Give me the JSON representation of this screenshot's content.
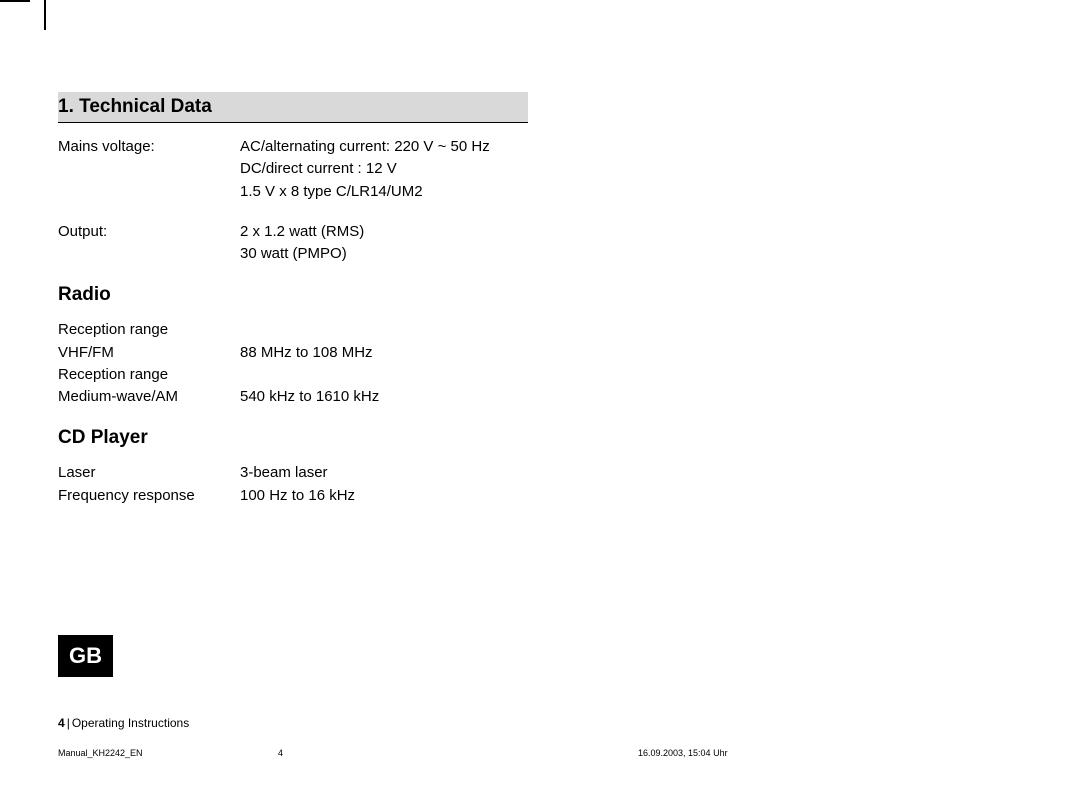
{
  "heading": "1. Technical Data",
  "specs_main": [
    {
      "label": "Mains voltage:",
      "lines": [
        "AC/alternating current: 220 V ~ 50 Hz",
        "DC/direct current : 12 V",
        "1.5 V x 8 type C/LR14/UM2"
      ]
    },
    {
      "label": "Output:",
      "lines": [
        "2 x 1.2 watt (RMS)",
        "30 watt (PMPO)"
      ]
    }
  ],
  "sub_radio": "Radio",
  "specs_radio": [
    {
      "label": "Reception range",
      "lines": [
        ""
      ]
    },
    {
      "label": "VHF/FM",
      "lines": [
        "88 MHz to 108 MHz"
      ]
    },
    {
      "label": "Reception range",
      "lines": [
        ""
      ]
    },
    {
      "label": "Medium-wave/AM",
      "lines": [
        "540 kHz to 1610 kHz"
      ]
    }
  ],
  "sub_cd": "CD Player",
  "specs_cd": [
    {
      "label": "Laser",
      "lines": [
        "3-beam laser"
      ]
    },
    {
      "label": "Frequency response",
      "lines": [
        "100 Hz to 16 kHz"
      ]
    }
  ],
  "lang_badge": "GB",
  "footer": {
    "page": "4",
    "title": "Operating Instructions"
  },
  "meta": {
    "file": "Manual_KH2242_EN",
    "page": "4",
    "date": "16.09.2003, 15:04 Uhr"
  }
}
